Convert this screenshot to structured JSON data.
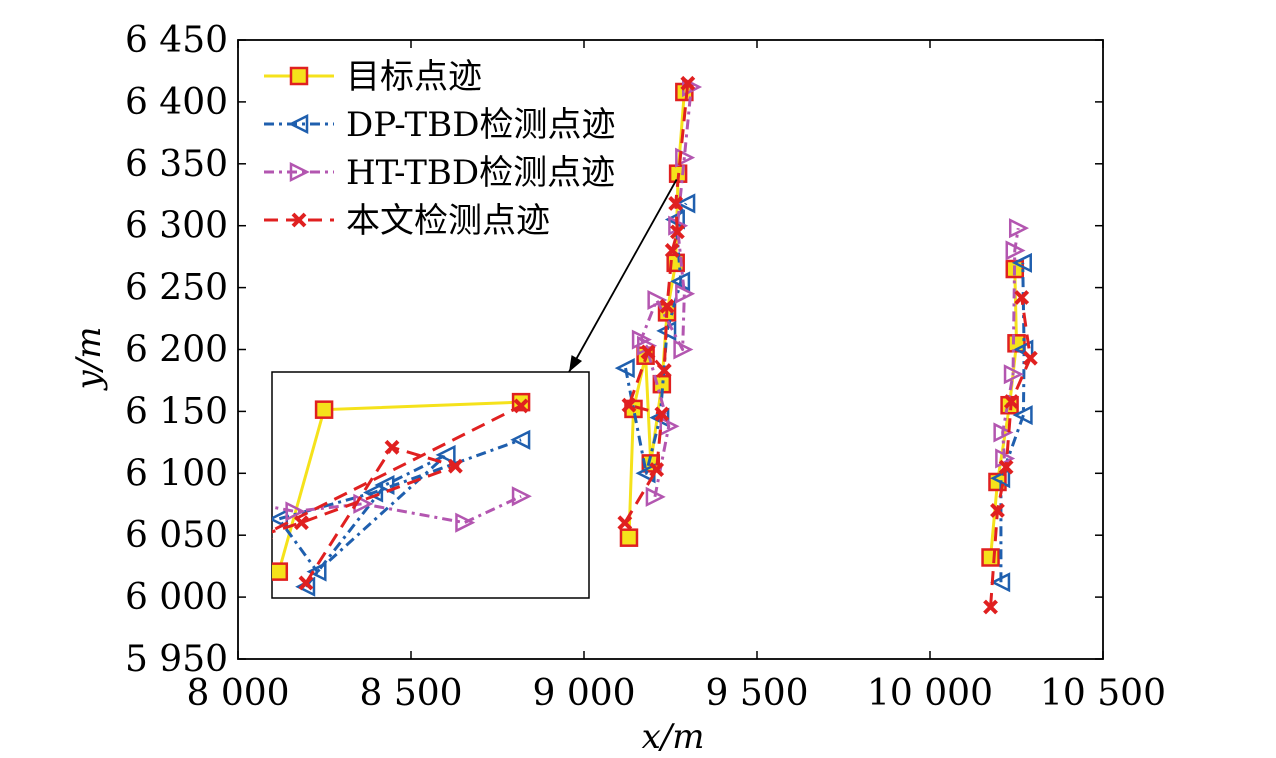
{
  "chart_data": {
    "type": "line",
    "xlabel": "x/m",
    "ylabel": "y/m",
    "xlim": [
      8000,
      10500
    ],
    "ylim": [
      5950,
      6450
    ],
    "x_ticks": [
      8000,
      8500,
      9000,
      9500,
      10000,
      10500
    ],
    "y_ticks": [
      5950,
      6000,
      6050,
      6100,
      6150,
      6200,
      6250,
      6300,
      6350,
      6400,
      6450
    ],
    "x_tick_labels": [
      "8 000",
      "8 500",
      "9 000",
      "9 500",
      "10 000",
      "10 500"
    ],
    "y_tick_labels": [
      "5 950",
      "6 000",
      "6 050",
      "6 100",
      "6 150",
      "6 200",
      "6 250",
      "6 300",
      "6 350",
      "6 400",
      "6 450"
    ],
    "grid": false,
    "legend_position": "top-left",
    "series": [
      {
        "name": "目标点迹",
        "color": "#f5e21b",
        "marker": "square",
        "marker_edge": "#e02020",
        "marker_face": "#f5e21b",
        "dash": "solid",
        "tracks": [
          [
            [
              9130,
              6048
            ],
            [
              9143,
              6152
            ],
            [
              9178,
              6195
            ],
            [
              9193,
              6108
            ],
            [
              9225,
              6172
            ],
            [
              9240,
              6230
            ],
            [
              9265,
              6270
            ],
            [
              9272,
              6342
            ],
            [
              9290,
              6408
            ]
          ],
          [
            [
              10175,
              6032
            ],
            [
              10195,
              6093
            ],
            [
              10230,
              6155
            ],
            [
              10250,
              6205
            ],
            [
              10245,
              6265
            ]
          ]
        ]
      },
      {
        "name": "DP-TBD检测点迹",
        "color": "#1f5fae",
        "marker": "triangle-left",
        "marker_edge": "#1f5fae",
        "marker_face": "none",
        "dash": "dashdot",
        "tracks": [
          [
            [
              9120,
              6185
            ],
            [
              9180,
              6100
            ],
            [
              9220,
              6145
            ],
            [
              9240,
              6215
            ],
            [
              9280,
              6255
            ],
            [
              9265,
              6305
            ],
            [
              9295,
              6318
            ]
          ],
          [
            [
              10205,
              6012
            ],
            [
              10205,
              6096
            ],
            [
              10270,
              6147
            ],
            [
              10272,
              6200
            ],
            [
              10268,
              6270
            ]
          ]
        ]
      },
      {
        "name": "HT-TBD检测点迹",
        "color": "#b356b0",
        "marker": "triangle-right",
        "marker_edge": "#b356b0",
        "marker_face": "none",
        "dash": "dashdot",
        "tracks": [
          [
            [
              9205,
              6081
            ],
            [
              9245,
              6138
            ],
            [
              9180,
              6203
            ],
            [
              9165,
              6208
            ],
            [
              9210,
              6240
            ],
            [
              9285,
              6200
            ],
            [
              9290,
              6245
            ],
            [
              9270,
              6300
            ],
            [
              9290,
              6355
            ],
            [
              9310,
              6412
            ]
          ],
          [
            [
              10215,
              6112
            ],
            [
              10210,
              6133
            ],
            [
              10240,
              6180
            ],
            [
              10245,
              6280
            ],
            [
              10255,
              6298
            ]
          ]
        ]
      },
      {
        "name": "本文检测点迹",
        "color": "#e02020",
        "marker": "x",
        "marker_edge": "#e02020",
        "marker_face": "none",
        "dash": "dashed",
        "tracks": [
          [
            [
              9118,
              6060
            ],
            [
              9210,
              6103
            ],
            [
              9225,
              6148
            ],
            [
              9130,
              6155
            ],
            [
              9185,
              6198
            ],
            [
              9232,
              6183
            ],
            [
              9240,
              6235
            ],
            [
              9255,
              6280
            ],
            [
              9270,
              6295
            ],
            [
              9265,
              6318
            ],
            [
              9300,
              6415
            ]
          ],
          [
            [
              10175,
              5992
            ],
            [
              10195,
              6070
            ],
            [
              10220,
              6105
            ],
            [
              10235,
              6158
            ],
            [
              10290,
              6193
            ],
            [
              10265,
              6242
            ]
          ]
        ]
      }
    ],
    "inset": {
      "xlim": [
        9155,
        9295
      ],
      "ylim": [
        6145,
        6205
      ],
      "anchor_point": [
        9285,
        6200
      ],
      "series": [
        [
          [
            9130,
            6167
          ],
          [
            9158,
            6152
          ],
          [
            9178,
            6195
          ],
          [
            9265,
            6197
          ]
        ],
        [
          [
            9170,
            6148
          ],
          [
            9205,
            6175
          ],
          [
            9232,
            6183
          ],
          [
            9175,
            6152
          ],
          [
            9158,
            6166
          ],
          [
            9200,
            6173
          ],
          [
            9265,
            6187
          ]
        ],
        [
          [
            9130,
            6172
          ],
          [
            9165,
            6168
          ],
          [
            9195,
            6170
          ],
          [
            9240,
            6165
          ],
          [
            9265,
            6172
          ]
        ],
        [
          [
            9170,
            6149
          ],
          [
            9208,
            6185
          ],
          [
            9236,
            6180
          ],
          [
            9168,
            6165
          ],
          [
            9152,
            6162
          ],
          [
            9265,
            6196
          ]
        ]
      ]
    }
  }
}
